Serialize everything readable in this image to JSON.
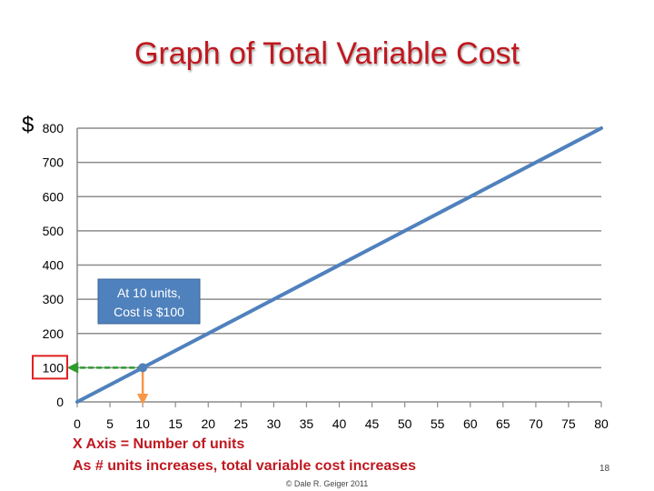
{
  "slide": {
    "title": "Graph of Total Variable Cost",
    "currency_symbol": "$",
    "notes": [
      "X Axis = Number of units",
      "As # units increases, total variable cost increases"
    ],
    "copyright": "© Dale R. Geiger 2011",
    "slide_number": "18"
  },
  "chart_data": {
    "type": "line",
    "title": "Graph of Total Variable Cost",
    "x_ticks": [
      0,
      5,
      10,
      15,
      20,
      25,
      30,
      35,
      40,
      45,
      50,
      55,
      60,
      65,
      70,
      75,
      80
    ],
    "y_ticks": [
      0,
      100,
      200,
      300,
      400,
      500,
      600,
      700,
      800
    ],
    "xlim": [
      0,
      80
    ],
    "ylim": [
      0,
      800
    ],
    "grid": "horizontal",
    "series": [
      {
        "color": "#4f81bd",
        "x": [
          0,
          80
        ],
        "y": [
          0,
          800
        ]
      }
    ],
    "highlight": {
      "x": 10,
      "y": 100,
      "point_color": "#4f81bd",
      "h_arrow_color": "#2e9a2e",
      "v_arrow_color": "#f79646",
      "box_color": "#e02020"
    },
    "callout": {
      "lines": [
        "At 10 units,",
        "Cost is $100"
      ],
      "fill": "#4f81bd",
      "text_color": "#ffffff"
    }
  }
}
